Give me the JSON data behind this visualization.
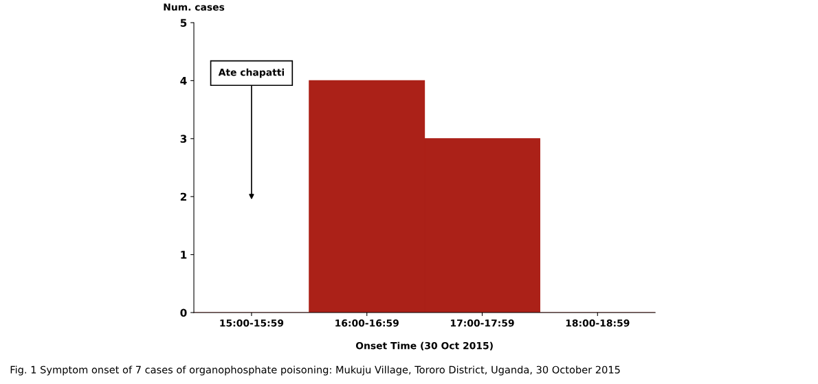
{
  "chart_data": {
    "type": "bar",
    "xlabel": "Onset Time (30 Oct 2015)",
    "ylabel": "Num. cases",
    "categories": [
      "15:00-15:59",
      "16:00-16:59",
      "17:00-17:59",
      "18:00-18:59"
    ],
    "values": [
      0,
      4,
      3,
      0
    ],
    "color": "#ab2118",
    "ylim": [
      0,
      5
    ],
    "yticks": [
      0,
      1,
      2,
      3,
      4,
      5
    ],
    "grid": false,
    "annotations": [
      "Ate chapatti",
      "Fig. 1 Symptom onset of 7 cases of organophosphate poisoning: Mukuju Village, Tororo District, Uganda, 30 October 2015"
    ]
  }
}
